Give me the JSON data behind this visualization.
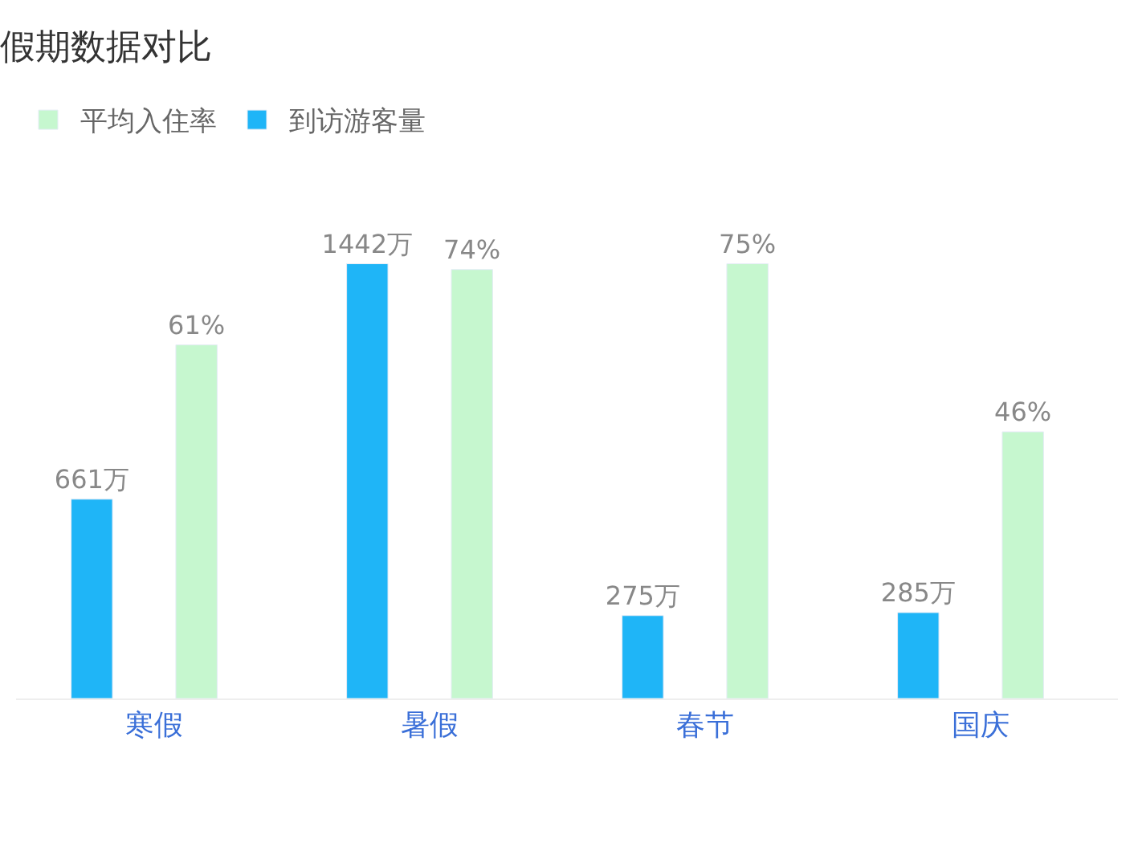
{
  "chart_data": {
    "type": "bar",
    "title": "假期数据对比",
    "categories": [
      "寒假",
      "暑假",
      "春节",
      "国庆"
    ],
    "series": [
      {
        "name": "到访游客量",
        "color": "#1fb5f7",
        "axis": "y2",
        "values": [
          661,
          1442,
          275,
          285
        ],
        "value_labels": [
          "661万",
          "1442万",
          "275万",
          "285万"
        ]
      },
      {
        "name": "平均入住率",
        "color": "#c6f7cf",
        "values": [
          61,
          74,
          75,
          46
        ],
        "value_labels": [
          "61%",
          "74%",
          "75%",
          "46%"
        ]
      }
    ],
    "legend": "top left",
    "tick_labels": "x"
  }
}
